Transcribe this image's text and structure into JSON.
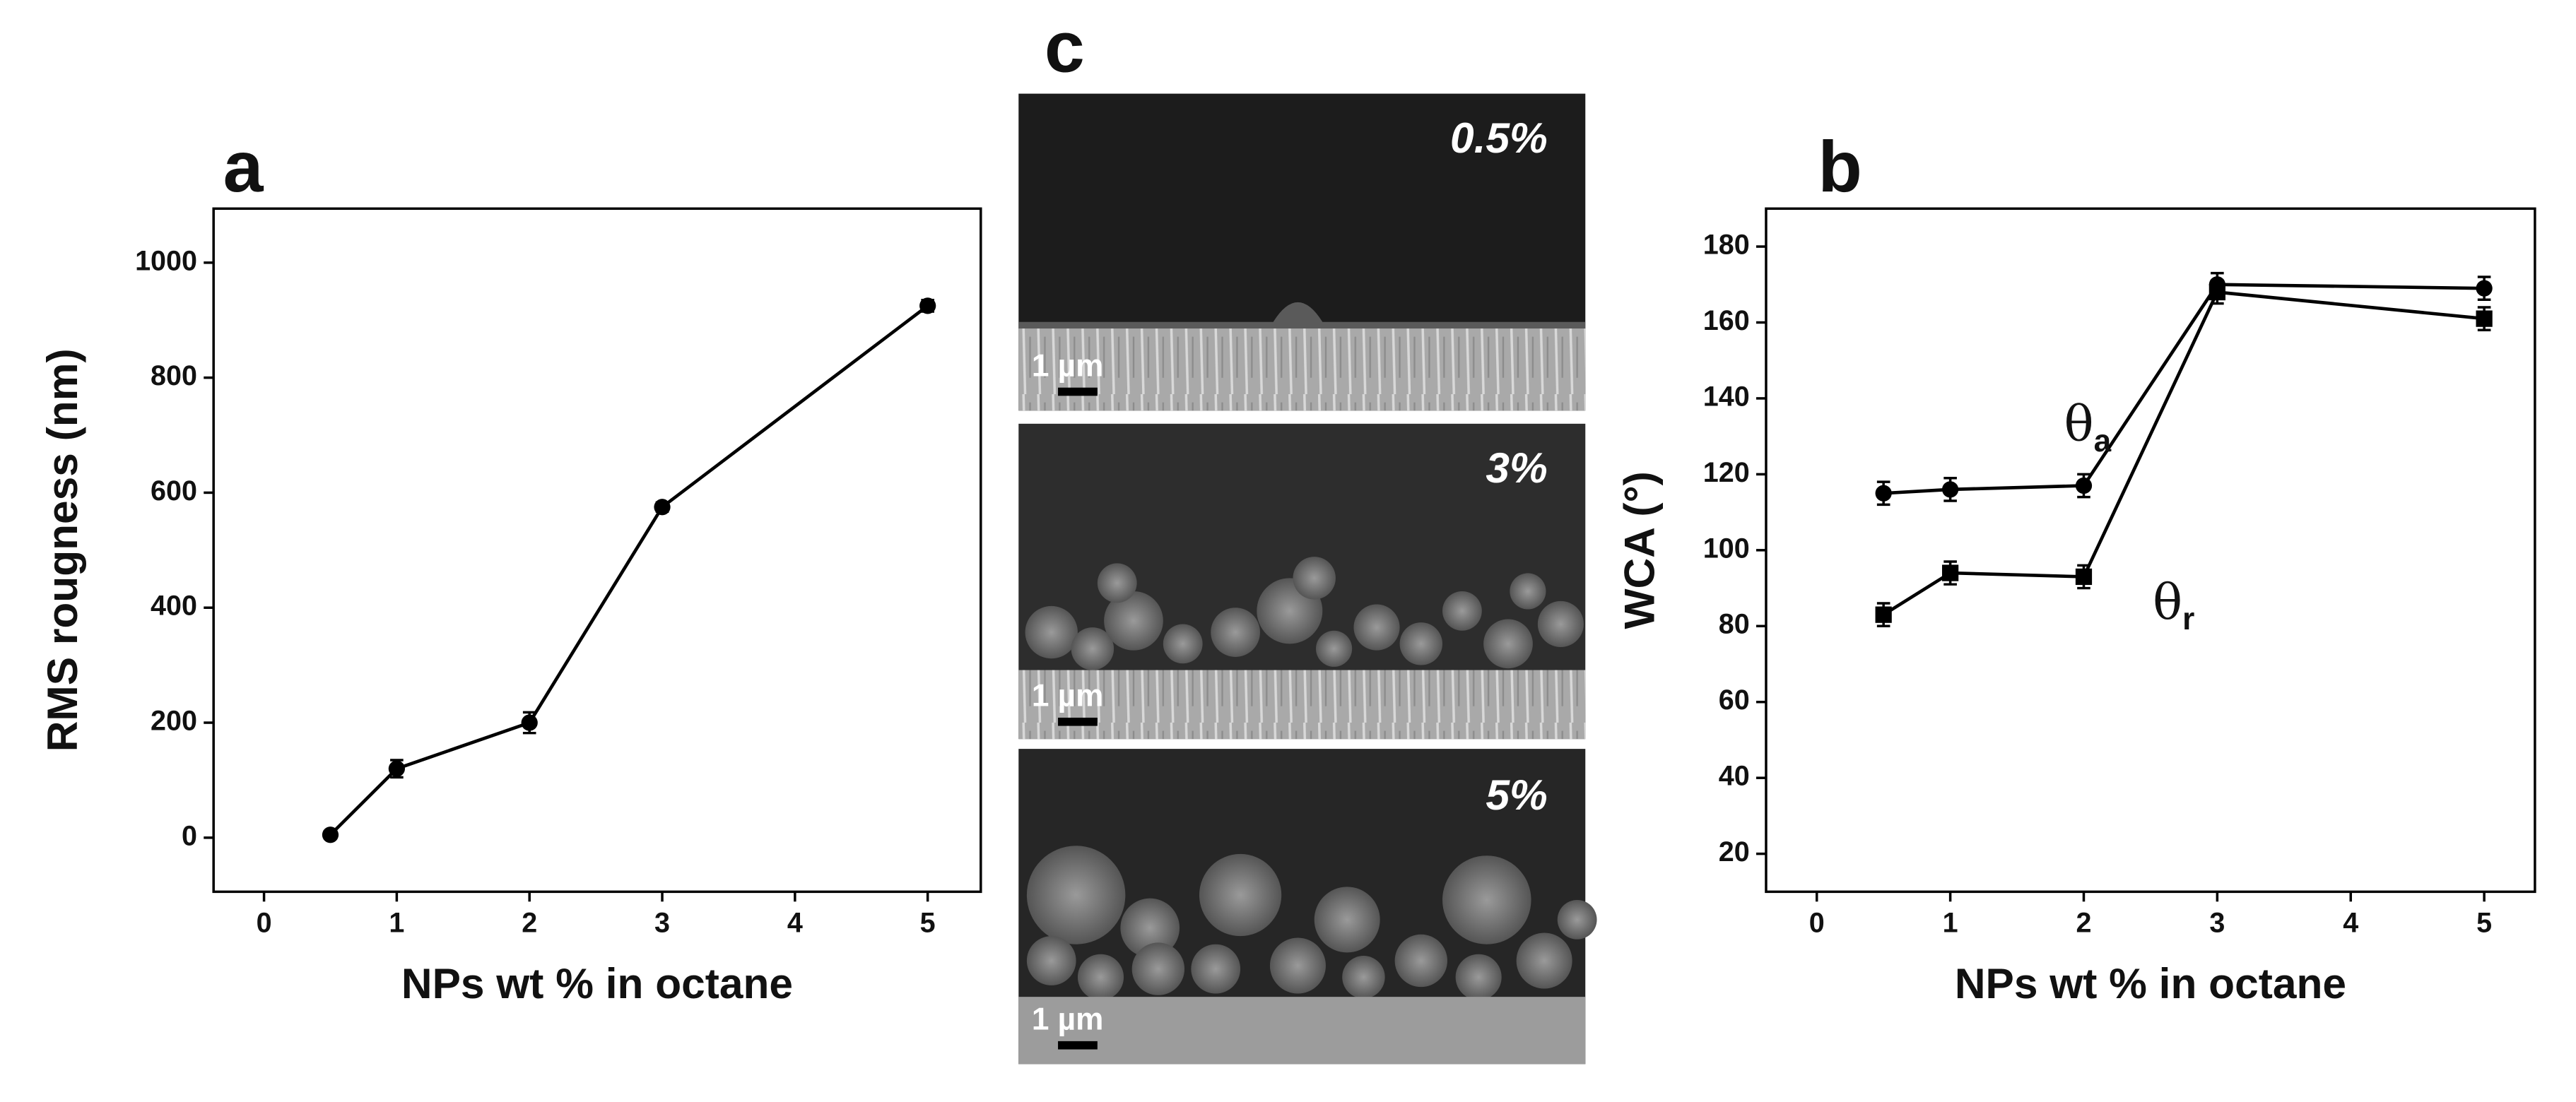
{
  "chart_data": [
    {
      "type": "line",
      "panel_label": "a",
      "xlabel": "NPs wt % in octane",
      "ylabel": "RMS rougness (nm)",
      "x": [
        0.5,
        1,
        2,
        3,
        5
      ],
      "series": [
        {
          "color": "#000000",
          "marker": "circle",
          "values": [
            5,
            120,
            200,
            575,
            925
          ],
          "errors": [
            6,
            15,
            18,
            8,
            10
          ]
        }
      ],
      "xlim": [
        -0.38,
        5.4
      ],
      "xticks": [
        0,
        1,
        2,
        3,
        4,
        5
      ],
      "ylim": [
        -94,
        1094
      ],
      "yticks": [
        0,
        200,
        400,
        600,
        800,
        1000
      ]
    },
    {
      "type": "line",
      "panel_label": "b",
      "xlabel": "NPs wt % in octane",
      "ylabel": "WCA (°)",
      "x": [
        0.5,
        1,
        2,
        3,
        5
      ],
      "series": [
        {
          "symbol": "θ",
          "subscript": "a",
          "color": "#000000",
          "marker": "circle",
          "values": [
            115,
            116,
            117,
            170,
            169
          ],
          "errors": [
            3,
            3,
            3,
            3,
            3
          ]
        },
        {
          "symbol": "θ",
          "subscript": "r",
          "color": "#000000",
          "marker": "square",
          "values": [
            83,
            94,
            93,
            168,
            161
          ],
          "errors": [
            3,
            3,
            3,
            3,
            3
          ]
        }
      ],
      "xlim": [
        -0.38,
        5.38
      ],
      "xticks": [
        0,
        1,
        2,
        3,
        4,
        5
      ],
      "ylim": [
        10,
        190
      ],
      "yticks": [
        20,
        40,
        60,
        80,
        100,
        120,
        140,
        160,
        180
      ]
    }
  ],
  "sem_panel": {
    "panel_label": "c",
    "images": [
      {
        "label": "0.5%",
        "scale": "1 µm"
      },
      {
        "label": "3%",
        "scale": "1 µm"
      },
      {
        "label": "5%",
        "scale": "1 µm"
      }
    ]
  }
}
